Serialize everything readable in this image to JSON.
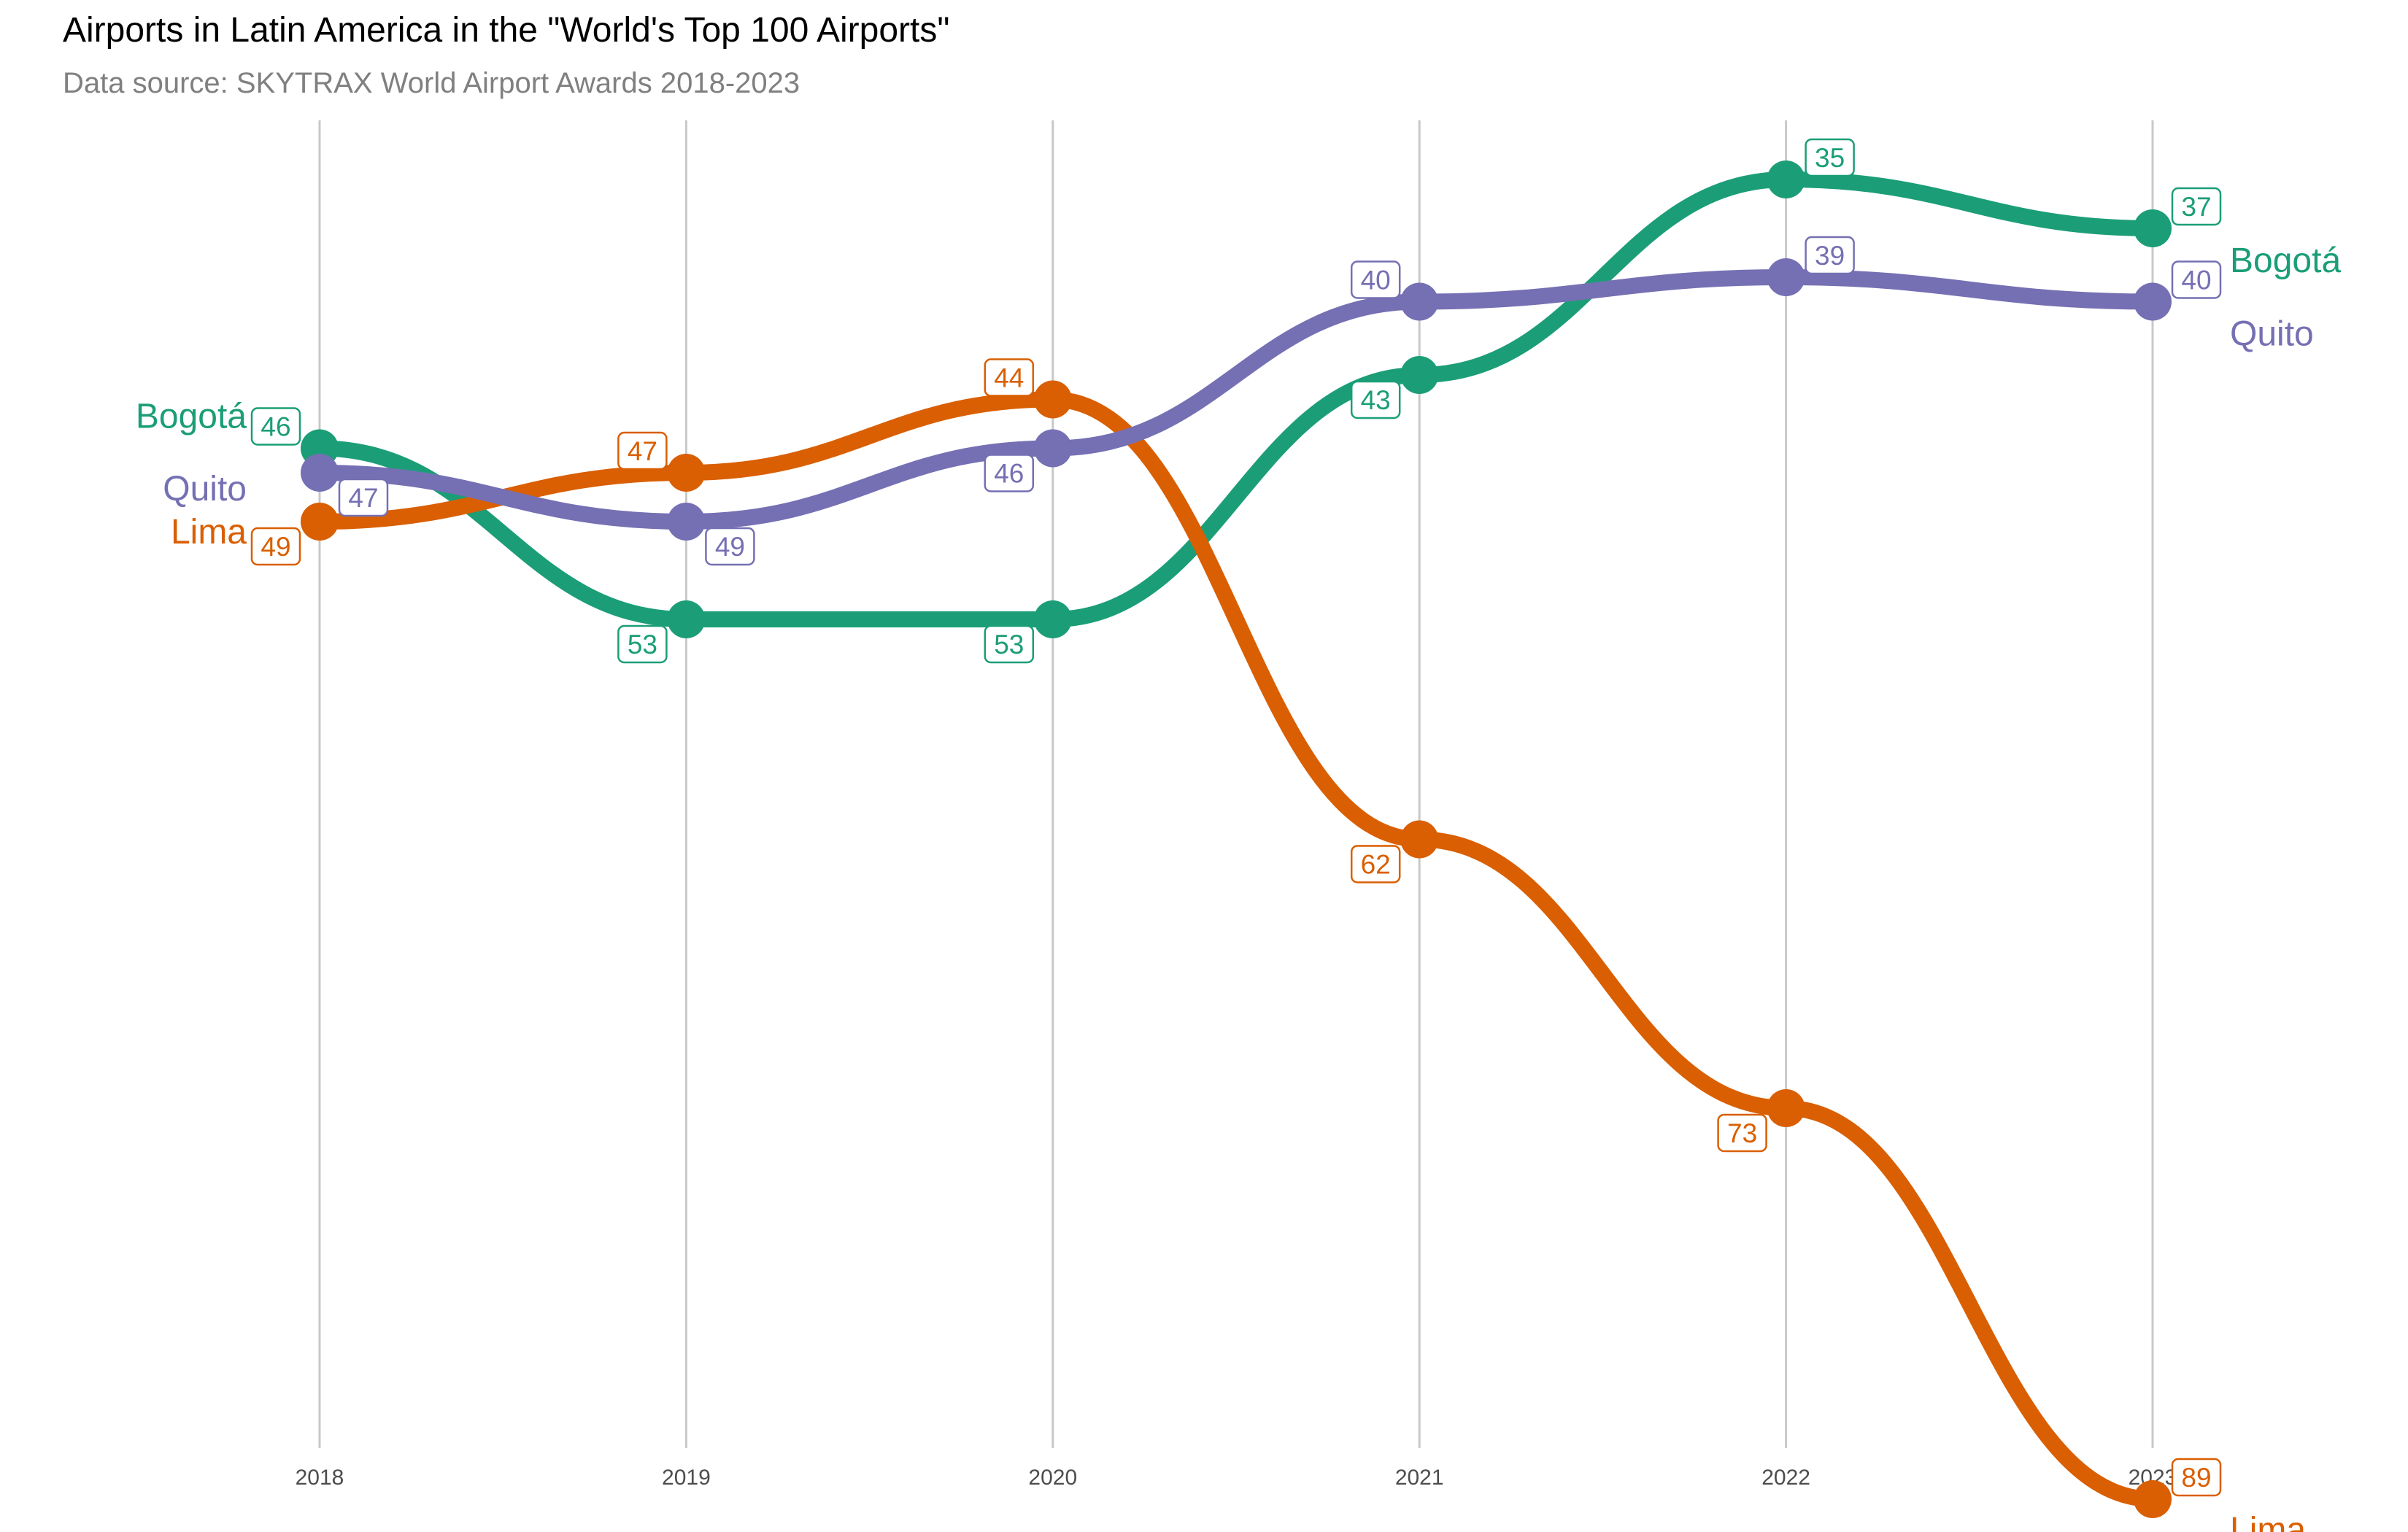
{
  "title": "Airports in Latin America in the \"World's Top 100 Airports\"",
  "subtitle": "Data source: SKYTRAX World Airport Awards 2018-2023",
  "chart_data": {
    "type": "line",
    "title": "Airports in Latin America in the \"World's Top 100 Airports\"",
    "subtitle": "Data source: SKYTRAX World Airport Awards 2018-2023",
    "xlabel": "",
    "ylabel": "",
    "x": [
      2018,
      2019,
      2020,
      2021,
      2022,
      2023
    ],
    "y_reversed": true,
    "ylim": [
      33,
      93
    ],
    "grid": "vertical",
    "legend": "direct labels at line ends",
    "series": [
      {
        "name": "Bogotá",
        "color": "#1B9E77",
        "values": [
          46,
          53,
          53,
          43,
          35,
          37
        ]
      },
      {
        "name": "Lima",
        "color": "#D95F02",
        "values": [
          49,
          47,
          44,
          62,
          73,
          89
        ]
      },
      {
        "name": "Quito",
        "color": "#7570B3",
        "values": [
          47,
          49,
          46,
          40,
          39,
          40
        ]
      }
    ]
  }
}
